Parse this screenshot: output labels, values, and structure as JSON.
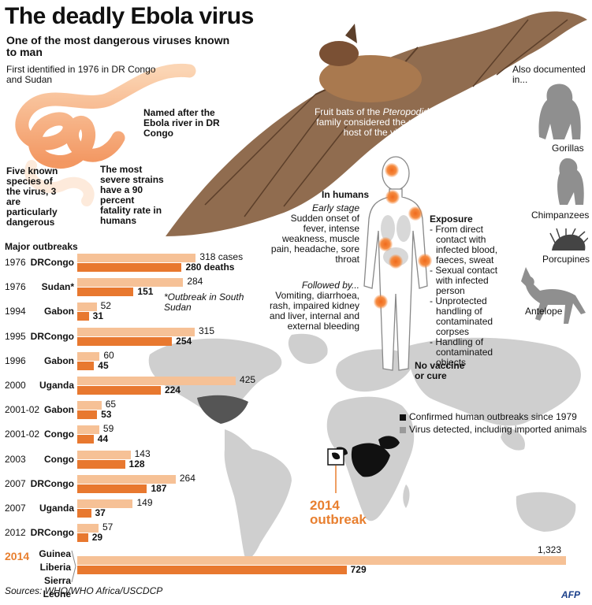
{
  "title": "The deadly Ebola virus",
  "subtitle": "One of the most dangerous viruses known to man",
  "virus_info": {
    "first_identified": "First identified in 1976 in DR Congo and Sudan",
    "named_after": "Named after the Ebola river in DR Congo",
    "species": "Five known species of the virus, 3 are particularly dangerous",
    "strains": "The most severe strains have a 90 percent fatality rate in humans"
  },
  "bats": {
    "line1": "Fruit bats of the",
    "family": "Pteropodidae",
    "line2": "family considered the natural host of the virus"
  },
  "humans": {
    "heading": "In humans",
    "early_label": "Early stage",
    "early_text": "Sudden onset of fever, intense weakness, muscle pain, headache, sore throat",
    "followed_label": "Followed by...",
    "followed_text": "Vomiting, diarrhoea, rash, impaired kidney and liver, internal and external bleeding",
    "exposure_heading": "Exposure",
    "exposure_items": [
      "- From direct contact with infected blood, faeces, sweat",
      "- Sexual contact with infected person",
      "- Unprotected handling of contaminated corpses",
      "- Handling of contaminated objects"
    ],
    "no_vaccine": "No vaccine or cure"
  },
  "animals": {
    "heading": "Also documented in...",
    "items": [
      "Gorillas",
      "Chimpanzees",
      "Porcupines",
      "Antelope"
    ]
  },
  "legend": {
    "confirmed": "Confirmed human outbreaks since 1979",
    "detected": "Virus detected, including imported animals",
    "confirmed_color": "#111111",
    "detected_color": "#9a9a9a"
  },
  "outbreak_2014_label": "2014 outbreak",
  "sources": "Sources: WHO/WHO Africa/USCDCP",
  "logo": "AFP",
  "chart_data": {
    "type": "bar",
    "title": "Major outbreaks",
    "units_label": "cases",
    "deaths_label": "deaths",
    "footnote": "*Outbreak in South Sudan",
    "series_colors": {
      "cases": "#f6c196",
      "deaths": "#e8782f"
    },
    "rows": [
      {
        "year": "1976",
        "country": "DRCongo",
        "cases": 318,
        "deaths": 280
      },
      {
        "year": "1976",
        "country": "Sudan*",
        "cases": 284,
        "deaths": 151
      },
      {
        "year": "1994",
        "country": "Gabon",
        "cases": 52,
        "deaths": 31
      },
      {
        "year": "1995",
        "country": "DRCongo",
        "cases": 315,
        "deaths": 254
      },
      {
        "year": "1996",
        "country": "Gabon",
        "cases": 60,
        "deaths": 45
      },
      {
        "year": "2000",
        "country": "Uganda",
        "cases": 425,
        "deaths": 224
      },
      {
        "year": "2001-02",
        "country": "Gabon",
        "cases": 65,
        "deaths": 53
      },
      {
        "year": "2001-02",
        "country": "Congo",
        "cases": 59,
        "deaths": 44
      },
      {
        "year": "2003",
        "country": "Congo",
        "cases": 143,
        "deaths": 128
      },
      {
        "year": "2007",
        "country": "DRCongo",
        "cases": 264,
        "deaths": 187
      },
      {
        "year": "2007",
        "country": "Uganda",
        "cases": 149,
        "deaths": 37
      },
      {
        "year": "2012",
        "country": "DRCongo",
        "cases": 57,
        "deaths": 29
      }
    ],
    "outbreak_2014": {
      "year": "2014",
      "countries": [
        "Guinea",
        "Liberia",
        "Sierra Leone"
      ],
      "cases": 1323,
      "cases_label": "1,323",
      "deaths": 729
    }
  }
}
